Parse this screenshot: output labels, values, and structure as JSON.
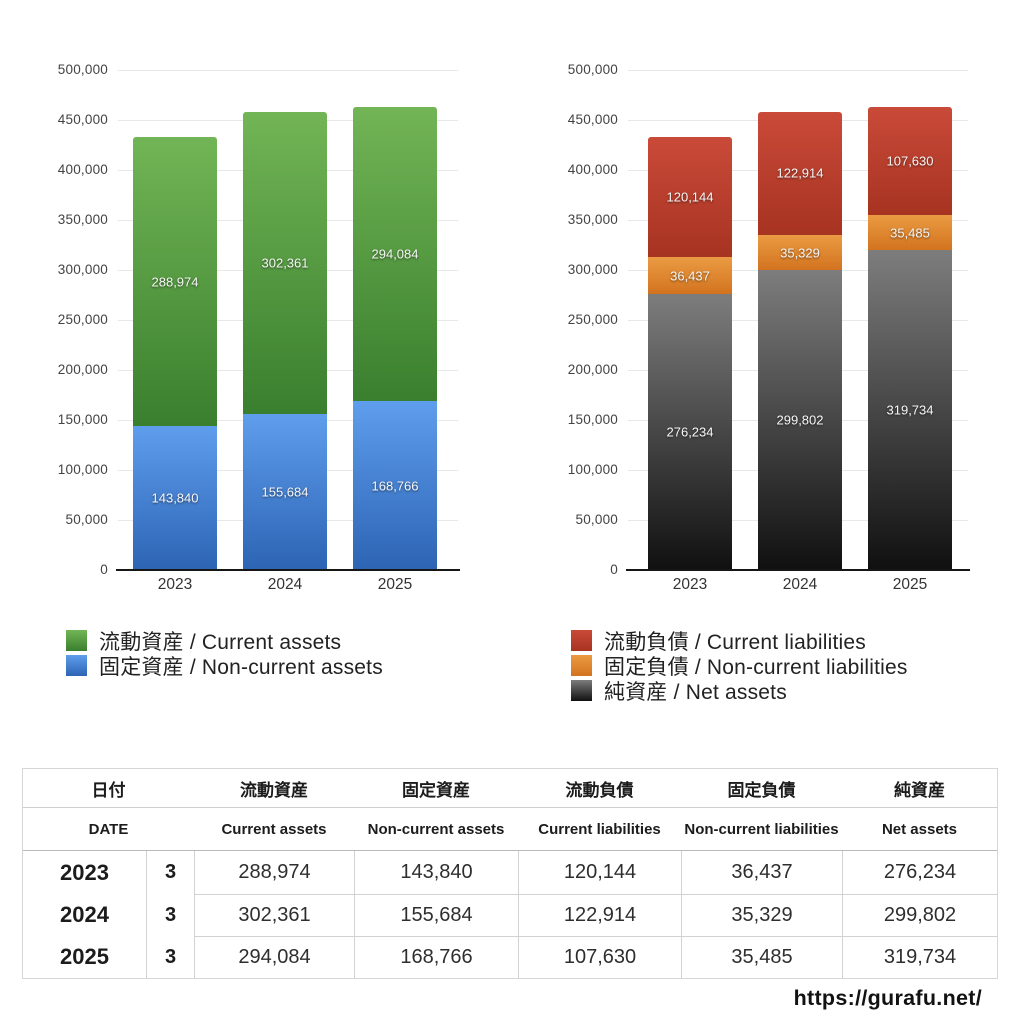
{
  "chart_data": [
    {
      "type": "bar",
      "stacked": true,
      "title": "",
      "categories": [
        "2023",
        "2024",
        "2025"
      ],
      "ylim": [
        0,
        500000
      ],
      "ytick_step": 50000,
      "grid": true,
      "legend_position": "bottom-left",
      "stack_order": "last-listed-series-at-bottom",
      "series": [
        {
          "name": "流動資産 / Current assets",
          "values": [
            288974,
            302361,
            294084
          ],
          "color_top": "#72b556",
          "color_bottom": "#3a7f2e"
        },
        {
          "name": "固定資産 / Non-current assets",
          "values": [
            143840,
            155684,
            168766
          ],
          "color_top": "#5f9ded",
          "color_bottom": "#2d64b4"
        }
      ]
    },
    {
      "type": "bar",
      "stacked": true,
      "title": "",
      "categories": [
        "2023",
        "2024",
        "2025"
      ],
      "ylim": [
        0,
        500000
      ],
      "ytick_step": 50000,
      "grid": true,
      "legend_position": "bottom-left",
      "stack_order": "last-listed-series-at-bottom",
      "series": [
        {
          "name": "流動負債 / Current liabilities",
          "values": [
            120144,
            122914,
            107630
          ],
          "color_top": "#ca4a39",
          "color_bottom": "#a73321"
        },
        {
          "name": "固定負債 / Non-current liabilities",
          "values": [
            36437,
            35329,
            35485
          ],
          "color_top": "#ea9b43",
          "color_bottom": "#d3731f"
        },
        {
          "name": "純資産 / Net assets",
          "values": [
            276234,
            299802,
            319734
          ],
          "color_top": "#7d7d7d",
          "color_bottom": "#101010"
        }
      ]
    }
  ],
  "table": {
    "header_ja": [
      "日付",
      "流動資産",
      "固定資産",
      "流動負債",
      "固定負債",
      "純資産"
    ],
    "header_en": [
      "DATE",
      "Current assets",
      "Non-current assets",
      "Current liabilities",
      "Non-current liabilities",
      "Net assets"
    ],
    "rows": [
      {
        "year": "2023",
        "month": "3",
        "values": [
          "288,974",
          "143,840",
          "120,144",
          "36,437",
          "276,234"
        ]
      },
      {
        "year": "2024",
        "month": "3",
        "values": [
          "302,361",
          "155,684",
          "122,914",
          "35,329",
          "299,802"
        ]
      },
      {
        "year": "2025",
        "month": "3",
        "values": [
          "294,084",
          "168,766",
          "107,630",
          "35,485",
          "319,734"
        ]
      }
    ]
  },
  "footer": {
    "url": "https://gurafu.net/"
  },
  "palette": {
    "gridline": "#e8e8e8",
    "axis": "#161616",
    "tick_text": "#434343",
    "bar_label_text": "#f7f7f7",
    "table_border": "#d2d2d2"
  }
}
